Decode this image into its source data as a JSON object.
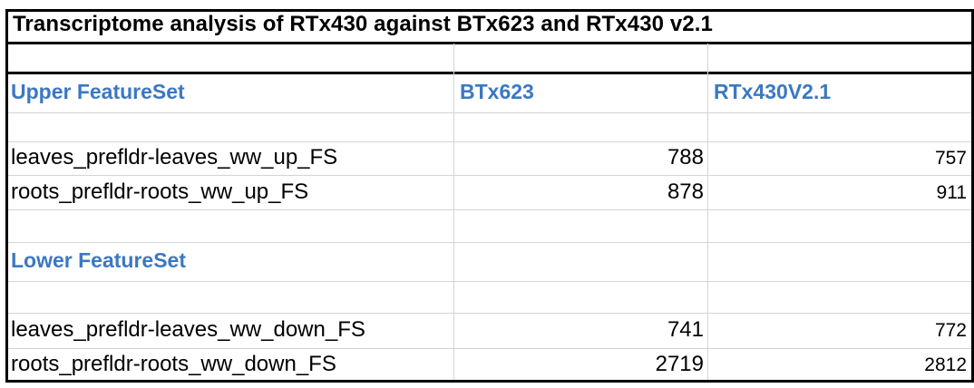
{
  "title": "Transcriptome analysis of RTx430 against BTx623 and RTx430 v2.1",
  "columns": {
    "feature": "Upper FeatureSet",
    "btx623": "BTx623",
    "rtx430": "RTx430V2.1"
  },
  "upper_rows": [
    {
      "name": "leaves_prefldr-leaves_ww_up_FS",
      "btx623": "788",
      "rtx430": "757"
    },
    {
      "name": "roots_prefldr-roots_ww_up_FS",
      "btx623": "878",
      "rtx430": "911"
    }
  ],
  "lower_header": "Lower FeatureSet",
  "lower_rows": [
    {
      "name": "leaves_prefldr-leaves_ww_down_FS",
      "btx623": "741",
      "rtx430": "772"
    },
    {
      "name": "roots_prefldr-roots_ww_down_FS",
      "btx623": "2719",
      "rtx430": "2812"
    }
  ],
  "colors": {
    "header_blue": "#3b78c2",
    "gridline": "#d4d4d4",
    "border": "#000000"
  }
}
